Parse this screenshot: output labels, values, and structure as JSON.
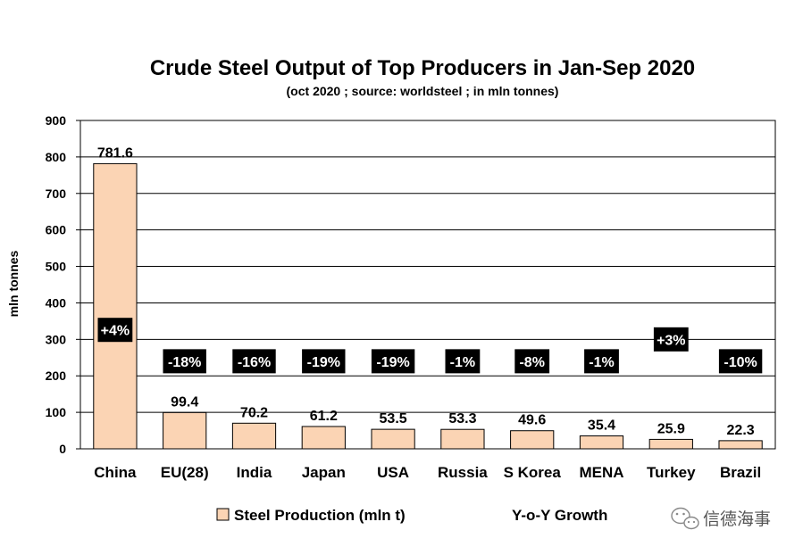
{
  "chart_data": {
    "type": "bar",
    "title": "Crude Steel Output of Top Producers in Jan-Sep 2020",
    "subtitle": "(oct 2020 ; source: worldsteel ; in mln tonnes)",
    "xlabel": "",
    "ylabel": "mln tonnes",
    "ylim": [
      0,
      900
    ],
    "yticks": [
      0,
      100,
      200,
      300,
      400,
      500,
      600,
      700,
      800,
      900
    ],
    "grid": true,
    "legend_placement": "bottom",
    "categories": [
      "China",
      "EU(28)",
      "India",
      "Japan",
      "USA",
      "Russia",
      "S Korea",
      "MENA",
      "Turkey",
      "Brazil"
    ],
    "series": [
      {
        "name": "Steel Production (mln t)",
        "values": [
          781.6,
          99.4,
          70.2,
          61.2,
          53.5,
          53.3,
          49.6,
          35.4,
          25.9,
          22.3
        ],
        "value_labels": [
          "781.6",
          "99.4",
          "70.2",
          "61.2",
          "53.5",
          "53.3",
          "49.6",
          "35.4",
          "25.9",
          "22.3"
        ],
        "color": "#FBD4B4"
      },
      {
        "name": "Y-o-Y Growth",
        "labels": [
          "+4%",
          "-18%",
          "-16%",
          "-19%",
          "-19%",
          "-1%",
          "-8%",
          "-1%",
          "+3%",
          "-10%"
        ],
        "values": [
          4,
          -18,
          -16,
          -19,
          -19,
          -1,
          -8,
          -1,
          3,
          -10
        ],
        "color": "#000000"
      }
    ]
  },
  "watermark": {
    "text": "信德海事",
    "icon": "wechat-icon"
  },
  "colors": {
    "bar_fill": "#FBD4B4",
    "bar_stroke": "#000000",
    "growth_box": "#000000",
    "growth_text": "#ffffff"
  }
}
